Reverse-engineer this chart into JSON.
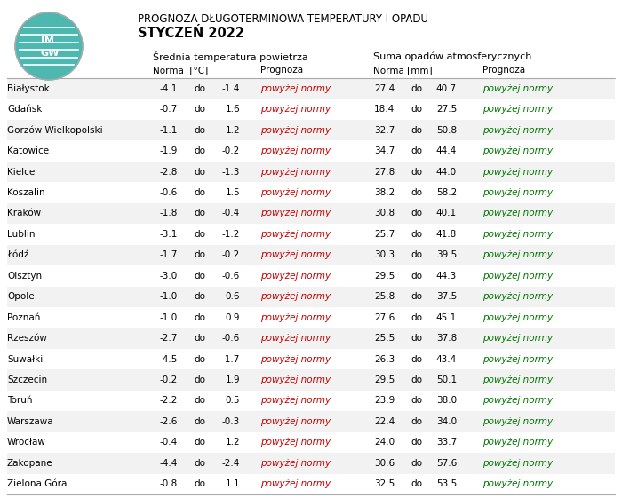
{
  "title_line1": "PROGNOZA DŁUGOTERMINOWA TEMPERATURY I OPADU",
  "title_line2": "STYCZEŃ 2022",
  "header_temp": "Średnia temperatura powietrza",
  "header_precip": "Suma opadów atmosferycznych",
  "col_norma_c": "Norma  [°C]",
  "col_prognoza": "Prognoza",
  "col_norma_mm": "Norma [mm]",
  "col_prognoza2": "Prognoza",
  "cities": [
    "Białystok",
    "Gdańsk",
    "Gorzów Wielkopolski",
    "Katowice",
    "Kielce",
    "Koszalin",
    "Kraków",
    "Lublin",
    "Łódź",
    "Olsztyn",
    "Opole",
    "Poznań",
    "Rzeszów",
    "Suwałki",
    "Szczecin",
    "Toruń",
    "Warszawa",
    "Wrocław",
    "Zakopane",
    "Zielona Góra"
  ],
  "temp_low": [
    -4.1,
    -0.7,
    -1.1,
    -1.9,
    -2.8,
    -0.6,
    -1.8,
    -3.1,
    -1.7,
    -3.0,
    -1.0,
    -1.0,
    -2.7,
    -4.5,
    -0.2,
    -2.2,
    -2.6,
    -0.4,
    -4.4,
    -0.8
  ],
  "temp_high": [
    -1.4,
    1.6,
    1.2,
    -0.2,
    -1.3,
    1.5,
    -0.4,
    -1.2,
    -0.2,
    -0.6,
    0.6,
    0.9,
    -0.6,
    -1.7,
    1.9,
    0.5,
    -0.3,
    1.2,
    -2.4,
    1.1
  ],
  "precip_low": [
    27.4,
    18.4,
    32.7,
    34.7,
    27.8,
    38.2,
    30.8,
    25.7,
    30.3,
    29.5,
    25.8,
    27.6,
    25.5,
    26.3,
    29.5,
    23.9,
    22.4,
    24.0,
    30.6,
    32.5
  ],
  "precip_high": [
    40.7,
    27.5,
    50.8,
    44.4,
    44.0,
    58.2,
    40.1,
    41.8,
    39.5,
    44.3,
    37.5,
    45.1,
    37.8,
    43.4,
    50.1,
    38.0,
    34.0,
    33.7,
    57.6,
    53.5
  ],
  "temp_forecast": "powyżej normy",
  "precip_forecast": "powyżej normy",
  "temp_forecast_color": "#cc0000",
  "precip_forecast_color": "#007700",
  "bg_color": "#ffffff",
  "row_alt_bg": "#f2f2f2",
  "font_size_title1": 8.5,
  "font_size_title2": 10.5,
  "font_size_header": 8.0,
  "font_size_col": 7.5,
  "font_size_data": 7.5,
  "logo_color": "#4db8b0",
  "logo_border": "#aaaaaa"
}
